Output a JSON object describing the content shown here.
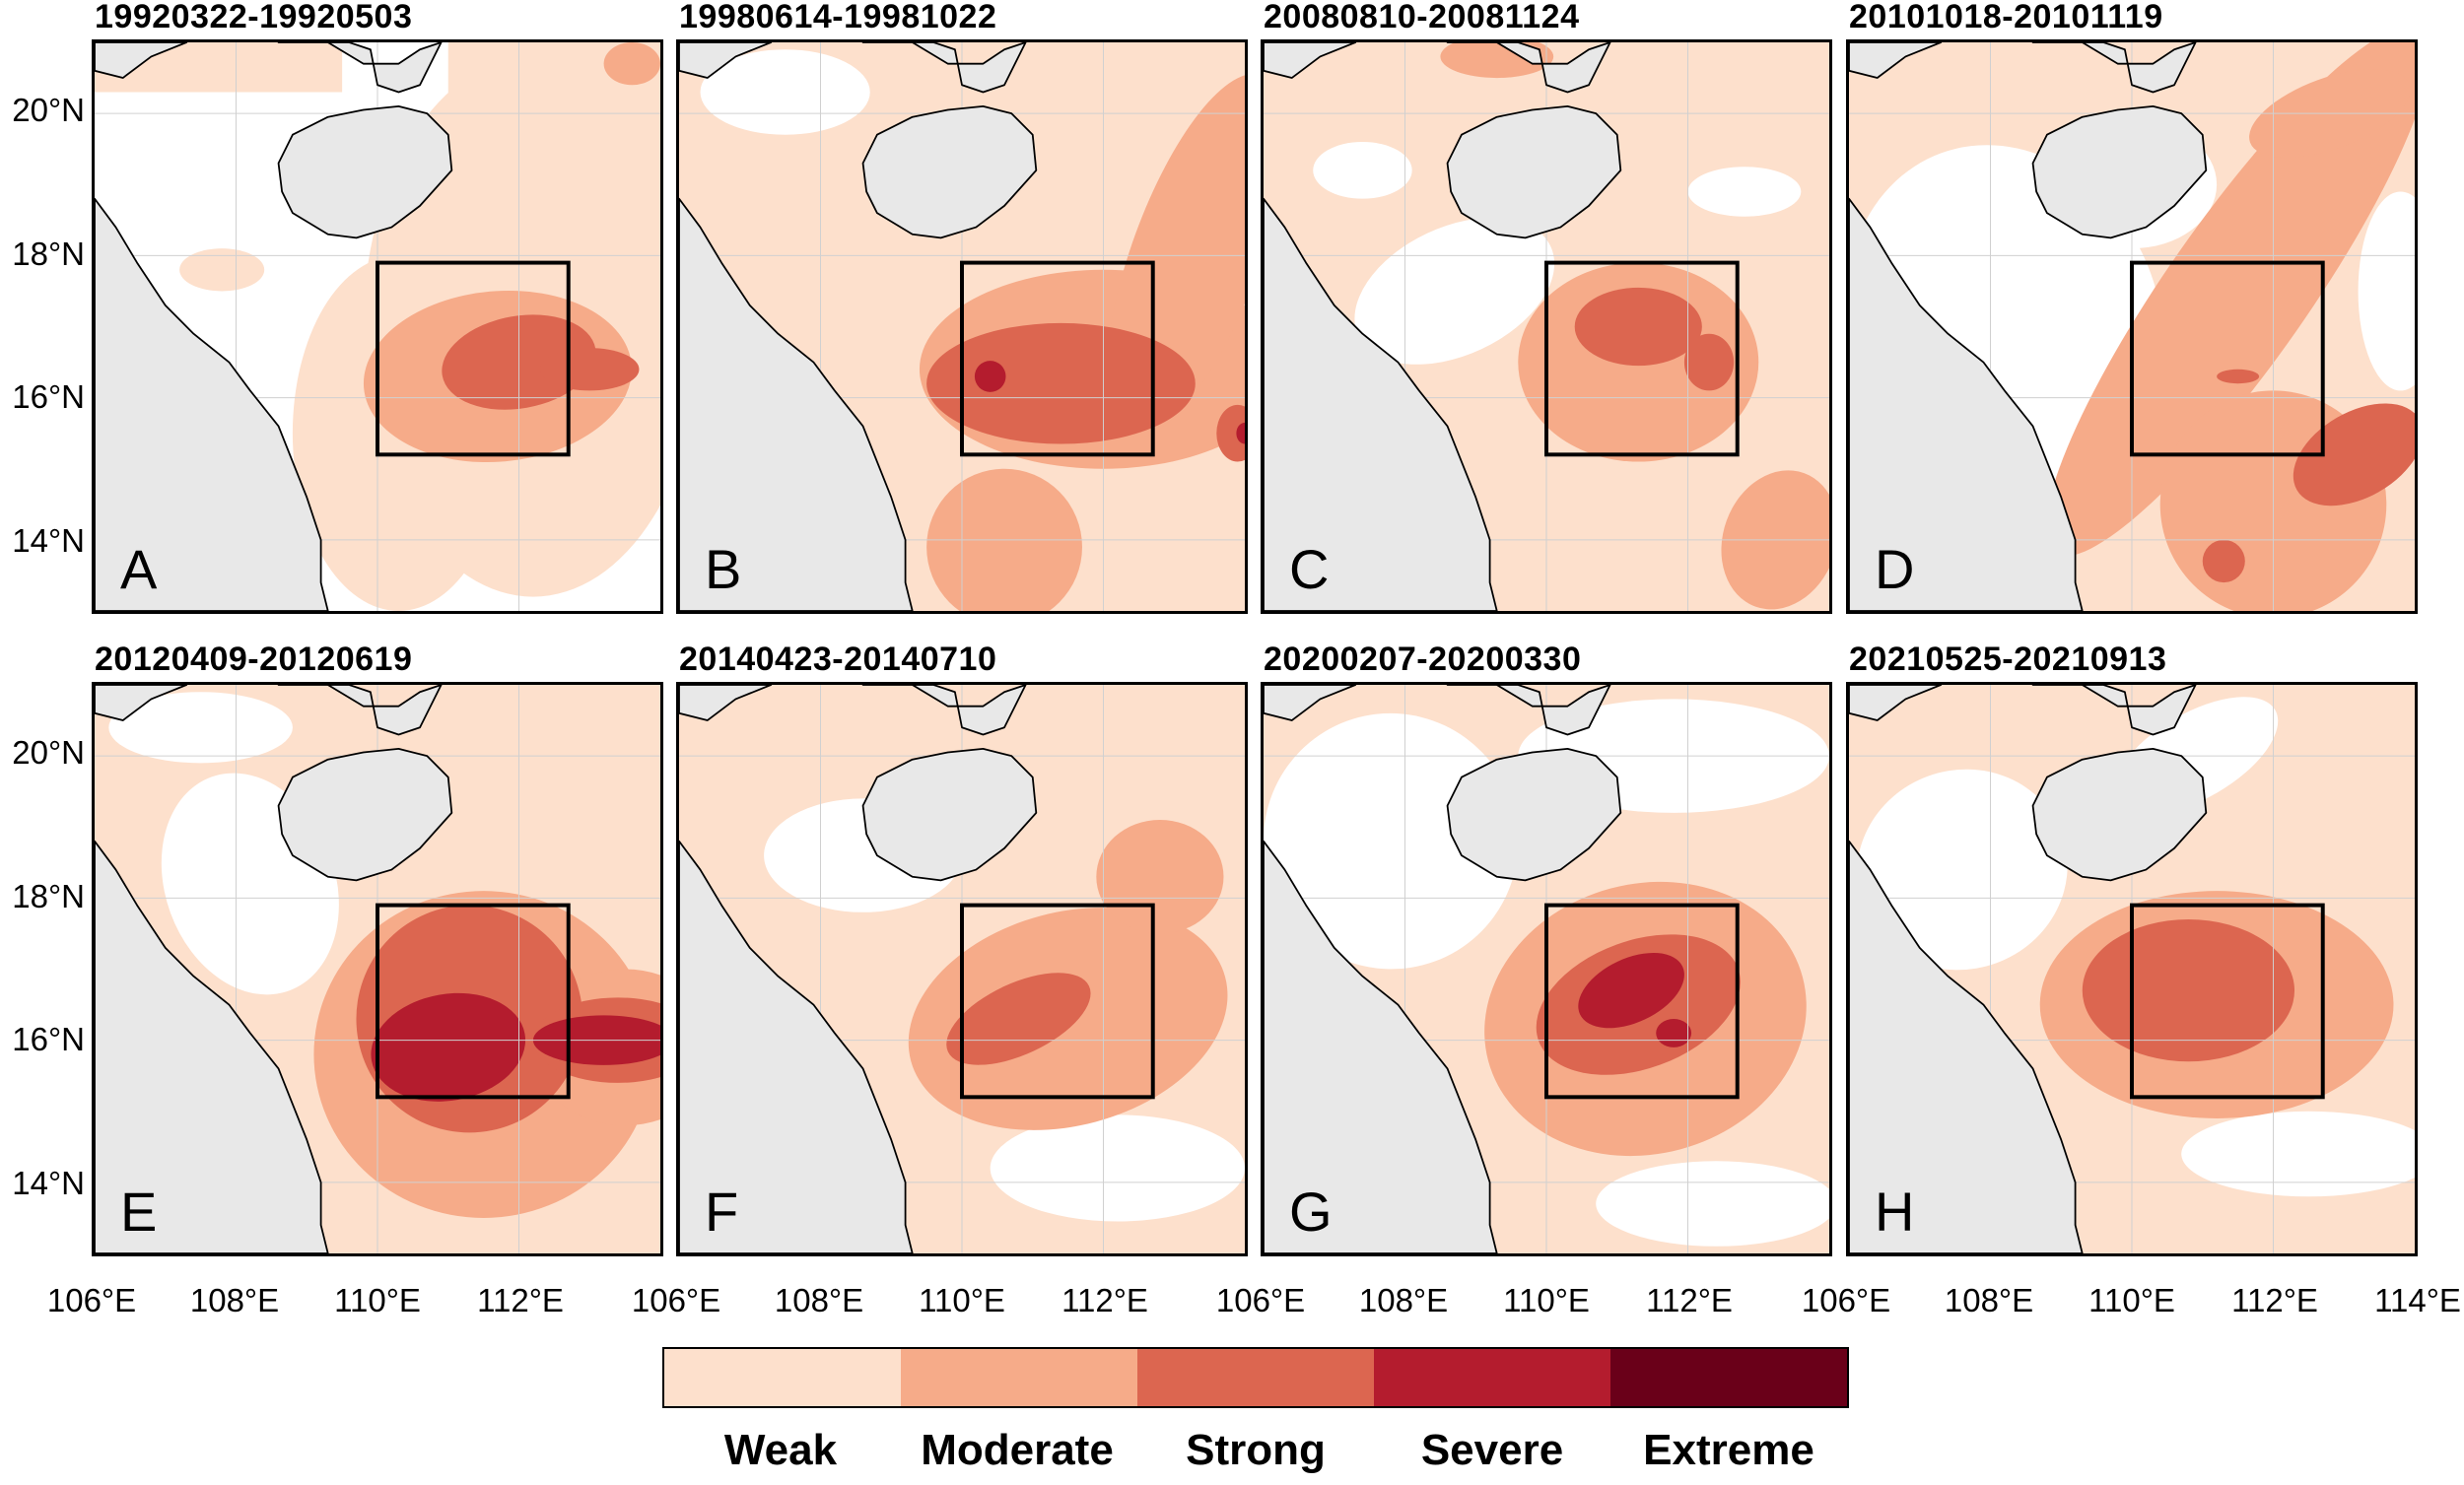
{
  "panels": [
    {
      "id": "A",
      "title": "19920322-19920503",
      "letter": "A"
    },
    {
      "id": "B",
      "title": "19980614-19981022",
      "letter": "B"
    },
    {
      "id": "C",
      "title": "20080810-20081124",
      "letter": "C"
    },
    {
      "id": "D",
      "title": "20101018-20101119",
      "letter": "D"
    },
    {
      "id": "E",
      "title": "20120409-20120619",
      "letter": "E"
    },
    {
      "id": "F",
      "title": "20140423-20140710",
      "letter": "F"
    },
    {
      "id": "G",
      "title": "20200207-20200330",
      "letter": "G"
    },
    {
      "id": "H",
      "title": "20210525-20210913",
      "letter": "H"
    }
  ],
  "latitude_labels": [
    "20°N",
    "18°N",
    "16°N",
    "14°N"
  ],
  "longitude_labels": [
    "106°E",
    "108°E",
    "110°E",
    "112°E",
    "114°E"
  ],
  "map_extent": {
    "lon_min": 106,
    "lon_max": 114,
    "lat_min": 13,
    "lat_max": 21
  },
  "study_box": {
    "lon_min": 110,
    "lon_max": 112.7,
    "lat_min": 15.2,
    "lat_max": 17.9
  },
  "legend": {
    "categories": [
      "Weak",
      "Moderate",
      "Strong",
      "Severe",
      "Extreme"
    ],
    "colors": [
      "#fde0cc",
      "#f6ab89",
      "#dc6650",
      "#b41c2e",
      "#6a0019"
    ]
  },
  "land_color": "#e8e8e8"
}
